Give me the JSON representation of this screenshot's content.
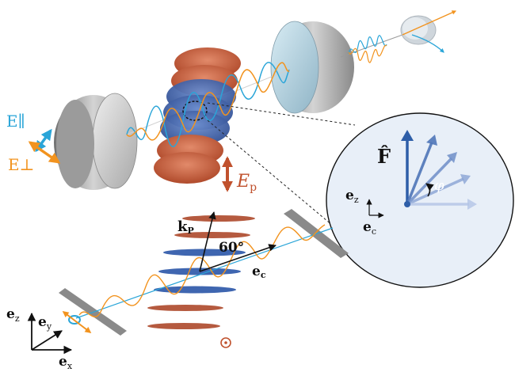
{
  "labels": {
    "e_parallel": "E∥",
    "e_perp": "E⊥",
    "e_p": "E",
    "e_p_sub": "p",
    "f_hat": "F̂",
    "phi": "φ",
    "inset_ez": "e",
    "inset_ez_sub": "z",
    "inset_ec": "e",
    "inset_ec_sub": "c",
    "k_p": "k",
    "k_p_sub": "P",
    "angle_60": "60°",
    "e_c": "e",
    "e_c_sub": "c",
    "axis_ez": "e",
    "axis_ez_sub": "z",
    "axis_ey": "e",
    "axis_ey_sub": "y",
    "axis_ex": "e",
    "axis_ex_sub": "x"
  },
  "colors": {
    "cyan_wave": "#2aa5d8",
    "orange_wave": "#f2931e",
    "red_disk": "#c8603f",
    "blue_disk": "#3f66b0",
    "mirror_gray": "#9a9a9a",
    "mirror_blue": "#a9c6d6",
    "inset_bg": "#e8eff8",
    "arrow_blue": "#2e5ea8",
    "text_blue": "#1f9ad6",
    "text_orange": "#f2931e",
    "text_red": "#c0512d"
  },
  "icons": {
    "ep_arrow": "double-arrow-icon",
    "out_of_plane": "dot-circle-icon"
  }
}
